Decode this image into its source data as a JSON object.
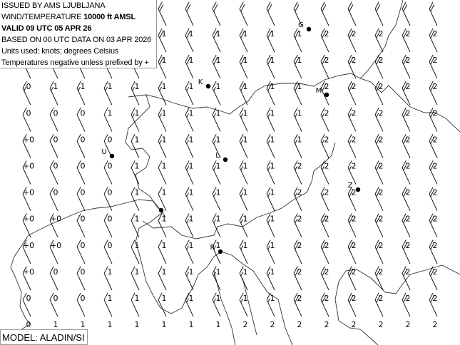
{
  "header": {
    "issued": "ISSUED BY AMS LJUBLJANA",
    "product_prefix": "WIND/TEMPERATURE",
    "level": "10000 ft AMSL",
    "valid": "VALID 09 UTC 05 APR 26",
    "based_on": "BASED ON 00 UTC DATA ON 03 APR 2026",
    "units": "Units used: knots; degrees Celsius",
    "temp_note": "Temperatures negative unless prefixed by +"
  },
  "model": "MODEL: ALADIN/SI",
  "colors": {
    "ink": "#000000",
    "border": "#333333",
    "background": "#ffffff"
  },
  "temperature_grid": [
    [
      null,
      null,
      null,
      null,
      null,
      "1",
      "1",
      "1",
      "1",
      "1",
      "1",
      "2",
      "2",
      "2",
      "2",
      "2"
    ],
    [
      null,
      null,
      null,
      null,
      null,
      "1",
      "1",
      "1",
      "1",
      "1",
      "1",
      "2",
      "2",
      "2",
      "2",
      "2"
    ],
    [
      "0",
      "1",
      "1",
      "1",
      "1",
      "1",
      "1",
      "1",
      "1",
      "1",
      "1",
      "2",
      "2",
      "2",
      "2",
      "2"
    ],
    [
      "0",
      "0",
      "0",
      "1",
      "1",
      "1",
      "1",
      "1",
      "1",
      "1",
      "1",
      "2",
      "2",
      "2",
      "2",
      "2"
    ],
    [
      "+0",
      "0",
      "0",
      "0",
      "1",
      "1",
      "1",
      "1",
      "1",
      "1",
      "1",
      "2",
      "2",
      "2",
      "2",
      "2"
    ],
    [
      "+0",
      "0",
      "0",
      "0",
      "1",
      "1",
      "1",
      "1",
      "1",
      "1",
      "2",
      "2",
      "2",
      "2",
      "2",
      "2"
    ],
    [
      "+0",
      "0",
      "0",
      "0",
      "1",
      "1",
      "1",
      "1",
      "1",
      "1",
      "2",
      "2",
      "2",
      "2",
      "2",
      "2"
    ],
    [
      "+0",
      "+0",
      "0",
      "0",
      "1",
      "1",
      "1",
      "1",
      "1",
      "1",
      "2",
      "2",
      "2",
      "2",
      "2",
      "2"
    ],
    [
      "+0",
      "+0",
      "0",
      "0",
      "1",
      "1",
      "1",
      "1",
      "1",
      "1",
      "2",
      "2",
      "2",
      "2",
      "2",
      "2"
    ],
    [
      "+0",
      "0",
      "0",
      "1",
      "1",
      "1",
      "1",
      "1",
      "1",
      "1",
      "2",
      "2",
      "2",
      "2",
      "2",
      "2"
    ],
    [
      "0",
      "0",
      "0",
      "1",
      "1",
      "1",
      "1",
      "1",
      "1",
      "1",
      "2",
      "2",
      "2",
      "2",
      "2",
      "2"
    ],
    [
      "0",
      "1",
      "1",
      "1",
      "1",
      "1",
      "1",
      "1",
      "2",
      "2",
      "2",
      "2",
      "2",
      "2",
      "2",
      "2"
    ]
  ],
  "wind_speed_kt_grid": [
    [
      20,
      20,
      20,
      20,
      20,
      20,
      20,
      20,
      20,
      20,
      20,
      20,
      20,
      20,
      20,
      20
    ],
    [
      20,
      20,
      20,
      20,
      20,
      20,
      20,
      20,
      20,
      20,
      20,
      20,
      20,
      20,
      20,
      20
    ],
    [
      15,
      15,
      15,
      15,
      15,
      20,
      20,
      20,
      20,
      20,
      20,
      20,
      20,
      20,
      20,
      20
    ],
    [
      15,
      15,
      15,
      15,
      15,
      15,
      15,
      15,
      20,
      20,
      20,
      20,
      20,
      20,
      20,
      20
    ],
    [
      10,
      10,
      10,
      10,
      15,
      15,
      15,
      15,
      15,
      15,
      15,
      15,
      15,
      15,
      20,
      20
    ],
    [
      10,
      10,
      10,
      10,
      10,
      15,
      15,
      15,
      15,
      15,
      15,
      15,
      15,
      20,
      20,
      20
    ],
    [
      10,
      10,
      10,
      10,
      10,
      10,
      15,
      15,
      15,
      15,
      15,
      15,
      15,
      20,
      20,
      20
    ],
    [
      10,
      10,
      10,
      10,
      10,
      10,
      15,
      15,
      15,
      15,
      15,
      15,
      20,
      20,
      20,
      20
    ],
    [
      10,
      10,
      10,
      10,
      10,
      10,
      15,
      15,
      15,
      15,
      15,
      20,
      20,
      20,
      20,
      20
    ],
    [
      10,
      10,
      10,
      10,
      10,
      10,
      15,
      15,
      15,
      15,
      20,
      20,
      20,
      20,
      20,
      20
    ],
    [
      10,
      10,
      10,
      10,
      10,
      10,
      15,
      15,
      15,
      15,
      20,
      20,
      20,
      20,
      20,
      20
    ],
    [
      10,
      10,
      10,
      10,
      10,
      10,
      15,
      15,
      15,
      15,
      20,
      20,
      20,
      20,
      20,
      20
    ]
  ],
  "wind_direction_deg": 335,
  "stations": [
    {
      "label": "G"
    },
    {
      "label": "K"
    },
    {
      "label": "M"
    },
    {
      "label": "U"
    },
    {
      "label": "L"
    },
    {
      "label": "Z"
    },
    {
      "label": "R"
    },
    {
      "label": ""
    }
  ]
}
